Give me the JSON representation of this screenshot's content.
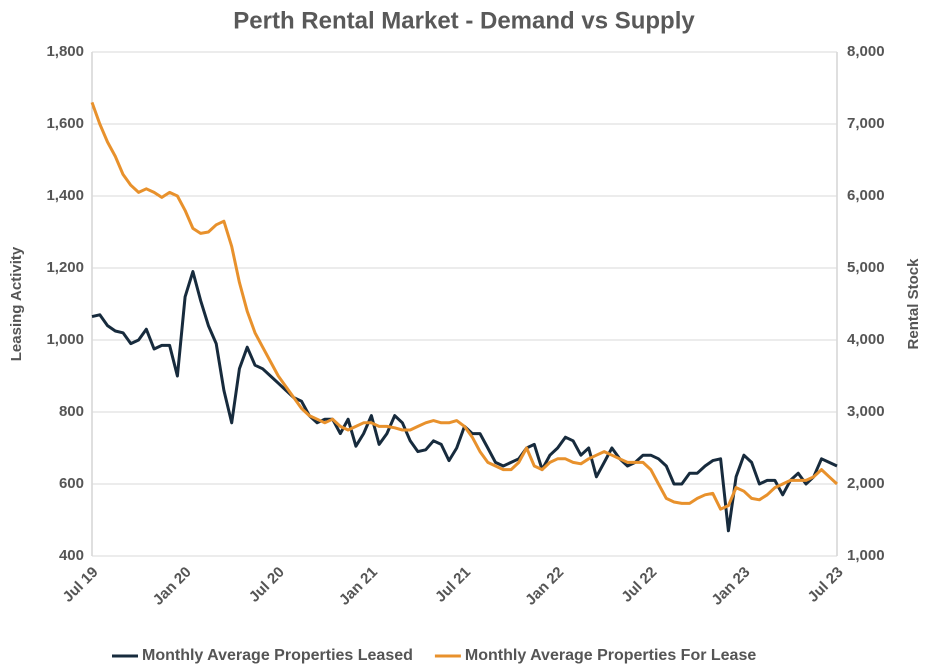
{
  "chart_data": {
    "type": "line",
    "title": "Perth Rental Market - Demand vs Supply",
    "y_label": "Leasing Activity",
    "y2_label": "Rental Stock",
    "categories": [
      "Jul 19",
      null,
      null,
      null,
      null,
      null,
      null,
      null,
      null,
      null,
      null,
      null,
      "Jan 20",
      null,
      null,
      null,
      null,
      null,
      null,
      null,
      null,
      null,
      null,
      null,
      "Jul 20",
      null,
      null,
      null,
      null,
      null,
      null,
      null,
      null,
      null,
      null,
      null,
      "Jan 21",
      null,
      null,
      null,
      null,
      null,
      null,
      null,
      null,
      null,
      null,
      null,
      "Jul 21",
      null,
      null,
      null,
      null,
      null,
      null,
      null,
      null,
      null,
      null,
      null,
      "Jan 22",
      null,
      null,
      null,
      null,
      null,
      null,
      null,
      null,
      null,
      null,
      null,
      "Jul 22",
      null,
      null,
      null,
      null,
      null,
      null,
      null,
      null,
      null,
      null,
      null,
      "Jan 23",
      null,
      null,
      null,
      null,
      null,
      null,
      null,
      null,
      null,
      null,
      null,
      "Jul 23"
    ],
    "series": [
      {
        "name": "Monthly Average Properties Leased",
        "color": "#172b3d",
        "axis": "y",
        "values": [
          1065,
          1070,
          1040,
          1025,
          1020,
          990,
          1000,
          1030,
          975,
          985,
          985,
          900,
          1120,
          1190,
          1110,
          1040,
          990,
          860,
          770,
          920,
          980,
          930,
          920,
          900,
          880,
          860,
          840,
          830,
          790,
          770,
          780,
          780,
          740,
          780,
          705,
          740,
          790,
          710,
          740,
          790,
          770,
          720,
          690,
          695,
          720,
          710,
          665,
          700,
          760,
          740,
          740,
          700,
          660,
          650,
          660,
          670,
          700,
          710,
          640,
          680,
          700,
          730,
          720,
          680,
          700,
          620,
          660,
          700,
          670,
          650,
          660,
          680,
          680,
          670,
          650,
          600,
          600,
          630,
          630,
          650,
          665,
          670,
          470,
          620,
          680,
          660,
          600,
          610,
          610,
          570,
          610,
          630,
          600,
          620,
          670,
          660,
          650
        ]
      },
      {
        "name": "Monthly Average Properties For Lease",
        "color": "#e8912c",
        "axis": "y2",
        "values": [
          7300,
          7000,
          6750,
          6550,
          6300,
          6150,
          6050,
          6100,
          6050,
          5980,
          6050,
          6000,
          5800,
          5550,
          5480,
          5500,
          5600,
          5650,
          5300,
          4800,
          4400,
          4100,
          3900,
          3700,
          3500,
          3350,
          3200,
          3050,
          2950,
          2900,
          2850,
          2900,
          2800,
          2750,
          2800,
          2850,
          2850,
          2800,
          2800,
          2780,
          2750,
          2750,
          2800,
          2850,
          2880,
          2850,
          2850,
          2880,
          2800,
          2650,
          2450,
          2300,
          2250,
          2200,
          2200,
          2300,
          2500,
          2250,
          2200,
          2300,
          2350,
          2350,
          2300,
          2280,
          2350,
          2400,
          2450,
          2400,
          2350,
          2300,
          2300,
          2300,
          2200,
          2000,
          1800,
          1750,
          1730,
          1730,
          1800,
          1850,
          1870,
          1650,
          1700,
          1950,
          1900,
          1800,
          1780,
          1850,
          1950,
          2000,
          2050,
          2050,
          2050,
          2100,
          2200,
          2100,
          2000
        ]
      }
    ],
    "ylim": [
      400,
      1800
    ],
    "yticks": [
      400,
      600,
      800,
      {
        "value": 1000,
        "label": "1,000"
      },
      {
        "value": 1200,
        "label": "1,200"
      },
      {
        "value": 1400,
        "label": "1,400"
      },
      {
        "value": 1600,
        "label": "1,600"
      },
      {
        "value": 1800,
        "label": "1,800"
      }
    ],
    "y2lim": [
      1000,
      8000
    ],
    "y2ticks": [
      {
        "value": 1000,
        "label": "1,000"
      },
      {
        "value": 2000,
        "label": "2,000"
      },
      {
        "value": 3000,
        "label": "3,000"
      },
      {
        "value": 4000,
        "label": "4,000"
      },
      {
        "value": 5000,
        "label": "5,000"
      },
      {
        "value": 6000,
        "label": "6,000"
      },
      {
        "value": 7000,
        "label": "7,000"
      },
      {
        "value": 8000,
        "label": "8,000"
      }
    ],
    "grid": true,
    "legend": "bottom"
  }
}
